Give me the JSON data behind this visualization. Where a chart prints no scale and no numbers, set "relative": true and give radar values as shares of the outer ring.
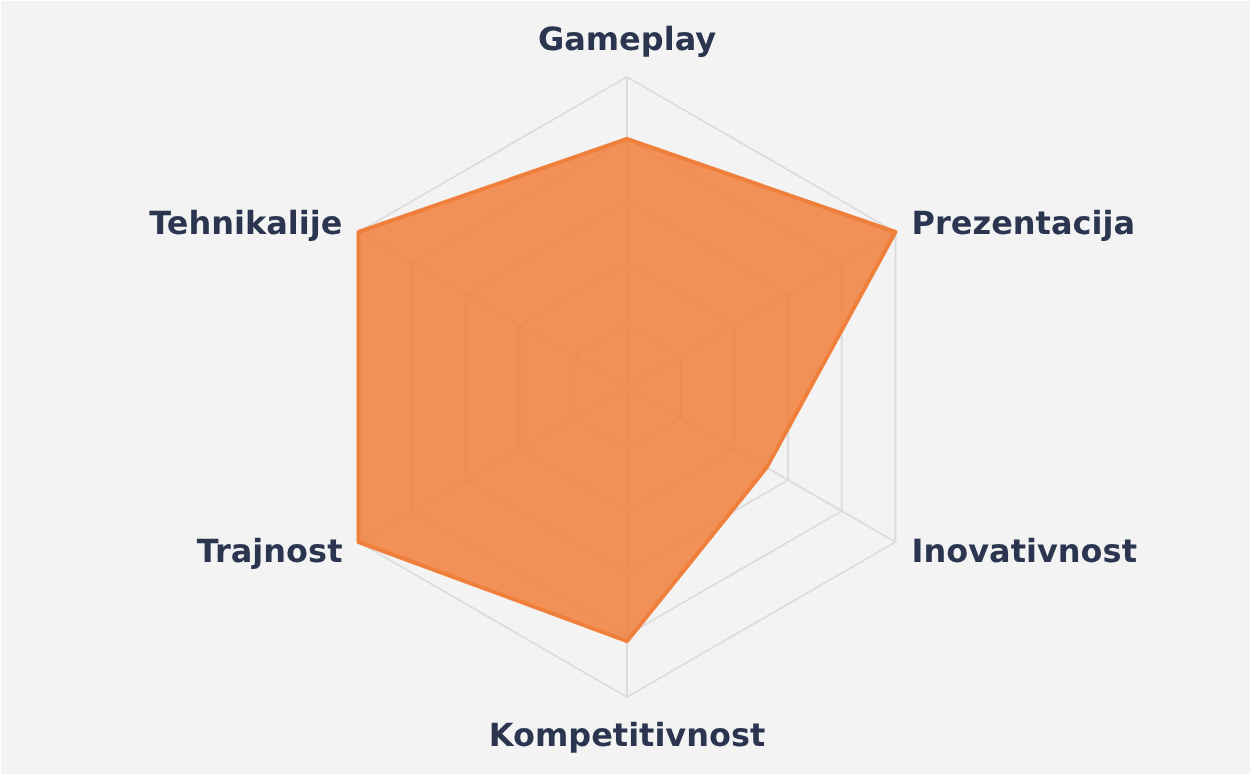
{
  "chart_data": {
    "type": "radar",
    "relative": true,
    "grid": true,
    "categories": [
      "Gameplay",
      "Prezentacija",
      "Inovativnost",
      "Kompetitivnost",
      "Trajnost",
      "Tehnikalije"
    ],
    "series": [
      {
        "color": "#f07f3c",
        "values": [
          0.8,
          1.0,
          0.52,
          0.82,
          1.0,
          1.0
        ]
      }
    ]
  }
}
